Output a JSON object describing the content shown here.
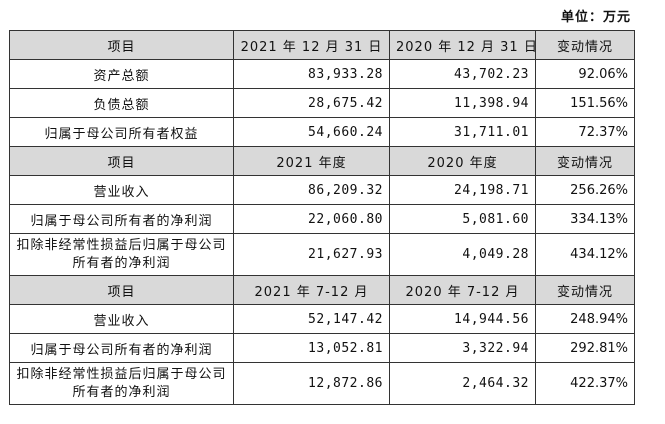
{
  "unit_label": "单位：万元",
  "sections": [
    {
      "header": [
        "项目",
        "2021 年 12 月 31 日",
        "2020 年 12 月 31 日",
        "变动情况"
      ],
      "rows": [
        {
          "label": "资产总额",
          "v1": "83,933.28",
          "v2": "43,702.23",
          "change": "92.06%"
        },
        {
          "label": "负债总额",
          "v1": "28,675.42",
          "v2": "11,398.94",
          "change": "151.56%"
        },
        {
          "label": "归属于母公司所有者权益",
          "v1": "54,660.24",
          "v2": "31,711.01",
          "change": "72.37%"
        }
      ]
    },
    {
      "header": [
        "项目",
        "2021 年度",
        "2020 年度",
        "变动情况"
      ],
      "rows": [
        {
          "label": "营业收入",
          "v1": "86,209.32",
          "v2": "24,198.71",
          "change": "256.26%"
        },
        {
          "label": "归属于母公司所有者的净利润",
          "v1": "22,060.80",
          "v2": "5,081.60",
          "change": "334.13%"
        },
        {
          "label": "扣除非经常性损益后归属于母公司所有者的净利润",
          "v1": "21,627.93",
          "v2": "4,049.28",
          "change": "434.12%"
        }
      ]
    },
    {
      "header": [
        "项目",
        "2021 年 7-12 月",
        "2020 年 7-12 月",
        "变动情况"
      ],
      "rows": [
        {
          "label": "营业收入",
          "v1": "52,147.42",
          "v2": "14,944.56",
          "change": "248.94%"
        },
        {
          "label": "归属于母公司所有者的净利润",
          "v1": "13,052.81",
          "v2": "3,322.94",
          "change": "292.81%"
        },
        {
          "label": "扣除非经常性损益后归属于母公司所有者的净利润",
          "v1": "12,872.86",
          "v2": "2,464.32",
          "change": "422.37%"
        }
      ]
    }
  ]
}
